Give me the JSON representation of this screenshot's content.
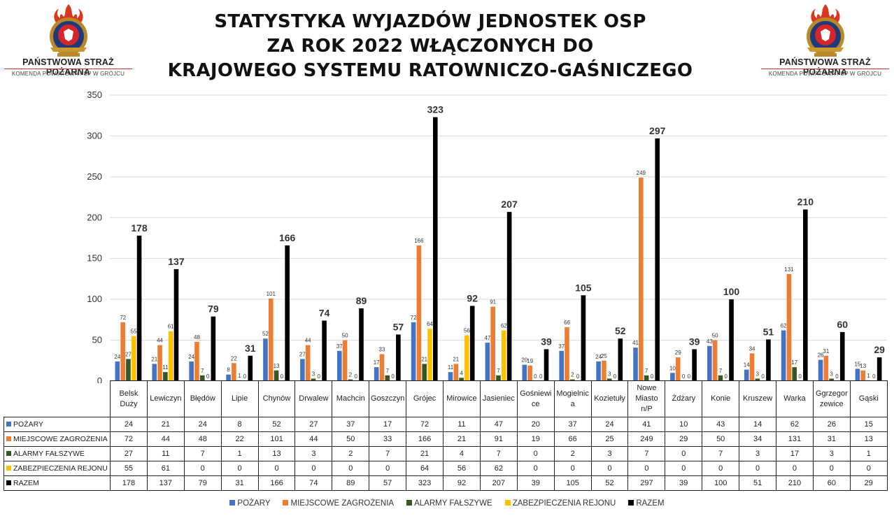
{
  "header": {
    "title_lines": [
      "STATYSTYKA WYJAZDÓW JEDNOSTEK OSP",
      "ZA ROK 2022 WŁĄCZONYCH DO",
      "KRAJOWEGO SYSTEMU RATOWNICZO-GAŚNICZEGO"
    ],
    "logo_org": "PAŃSTWOWA STRAŻ POŻARNA",
    "logo_sub": "KOMENDA POWIATOWA PSP W GRÓJCU"
  },
  "chart_data": {
    "type": "bar",
    "ylim": [
      0,
      350
    ],
    "yticks": [
      0,
      50,
      100,
      150,
      200,
      250,
      300,
      350
    ],
    "grid": true,
    "legend_position": "bottom",
    "category_labels": [
      [
        "Belsk",
        "Duży"
      ],
      [
        "Lewiczyn"
      ],
      [
        "Błędów"
      ],
      [
        "Lipie"
      ],
      [
        "Chynów"
      ],
      [
        "Drwalew"
      ],
      [
        "Machcin"
      ],
      [
        "Goszczyn"
      ],
      [
        "Grójec"
      ],
      [
        "Mirowice"
      ],
      [
        "Jasieniec"
      ],
      [
        "Gośniewi",
        "ce"
      ],
      [
        "Mogielnic",
        "a"
      ],
      [
        "Kozietuły"
      ],
      [
        "Nowe",
        "Miasto",
        "n/P"
      ],
      [
        "Żdżary"
      ],
      [
        "Konie"
      ],
      [
        "Kruszew"
      ],
      [
        "Warka"
      ],
      [
        "Ggrzegor",
        "zewice"
      ],
      [
        "Gąski"
      ]
    ],
    "series": [
      {
        "name": "POŻARY",
        "color": "#4472c4",
        "values": [
          24,
          21,
          24,
          8,
          52,
          27,
          37,
          17,
          72,
          11,
          47,
          20,
          37,
          24,
          41,
          10,
          43,
          14,
          62,
          26,
          15
        ]
      },
      {
        "name": "MIEJSCOWE ZAGROŻENIA",
        "color": "#ed7d31",
        "values": [
          72,
          44,
          48,
          22,
          101,
          44,
          50,
          33,
          166,
          21,
          91,
          19,
          66,
          25,
          249,
          29,
          50,
          34,
          131,
          31,
          13
        ]
      },
      {
        "name": "ALARMY FAŁSZYWE",
        "color": "#375623",
        "values": [
          27,
          11,
          7,
          1,
          13,
          3,
          2,
          7,
          21,
          4,
          7,
          0,
          2,
          3,
          7,
          0,
          7,
          3,
          17,
          3,
          1
        ]
      },
      {
        "name": "ZABEZPIECZENIA REJONU",
        "color": "#ffc000",
        "values": [
          55,
          61,
          0,
          0,
          0,
          0,
          0,
          0,
          64,
          56,
          62,
          0,
          0,
          0,
          0,
          0,
          0,
          0,
          0,
          0,
          0
        ]
      },
      {
        "name": "RAZEM",
        "color": "#000000",
        "values": [
          178,
          137,
          79,
          31,
          166,
          74,
          89,
          57,
          323,
          92,
          207,
          39,
          105,
          52,
          297,
          39,
          100,
          51,
          210,
          60,
          29
        ]
      }
    ]
  }
}
